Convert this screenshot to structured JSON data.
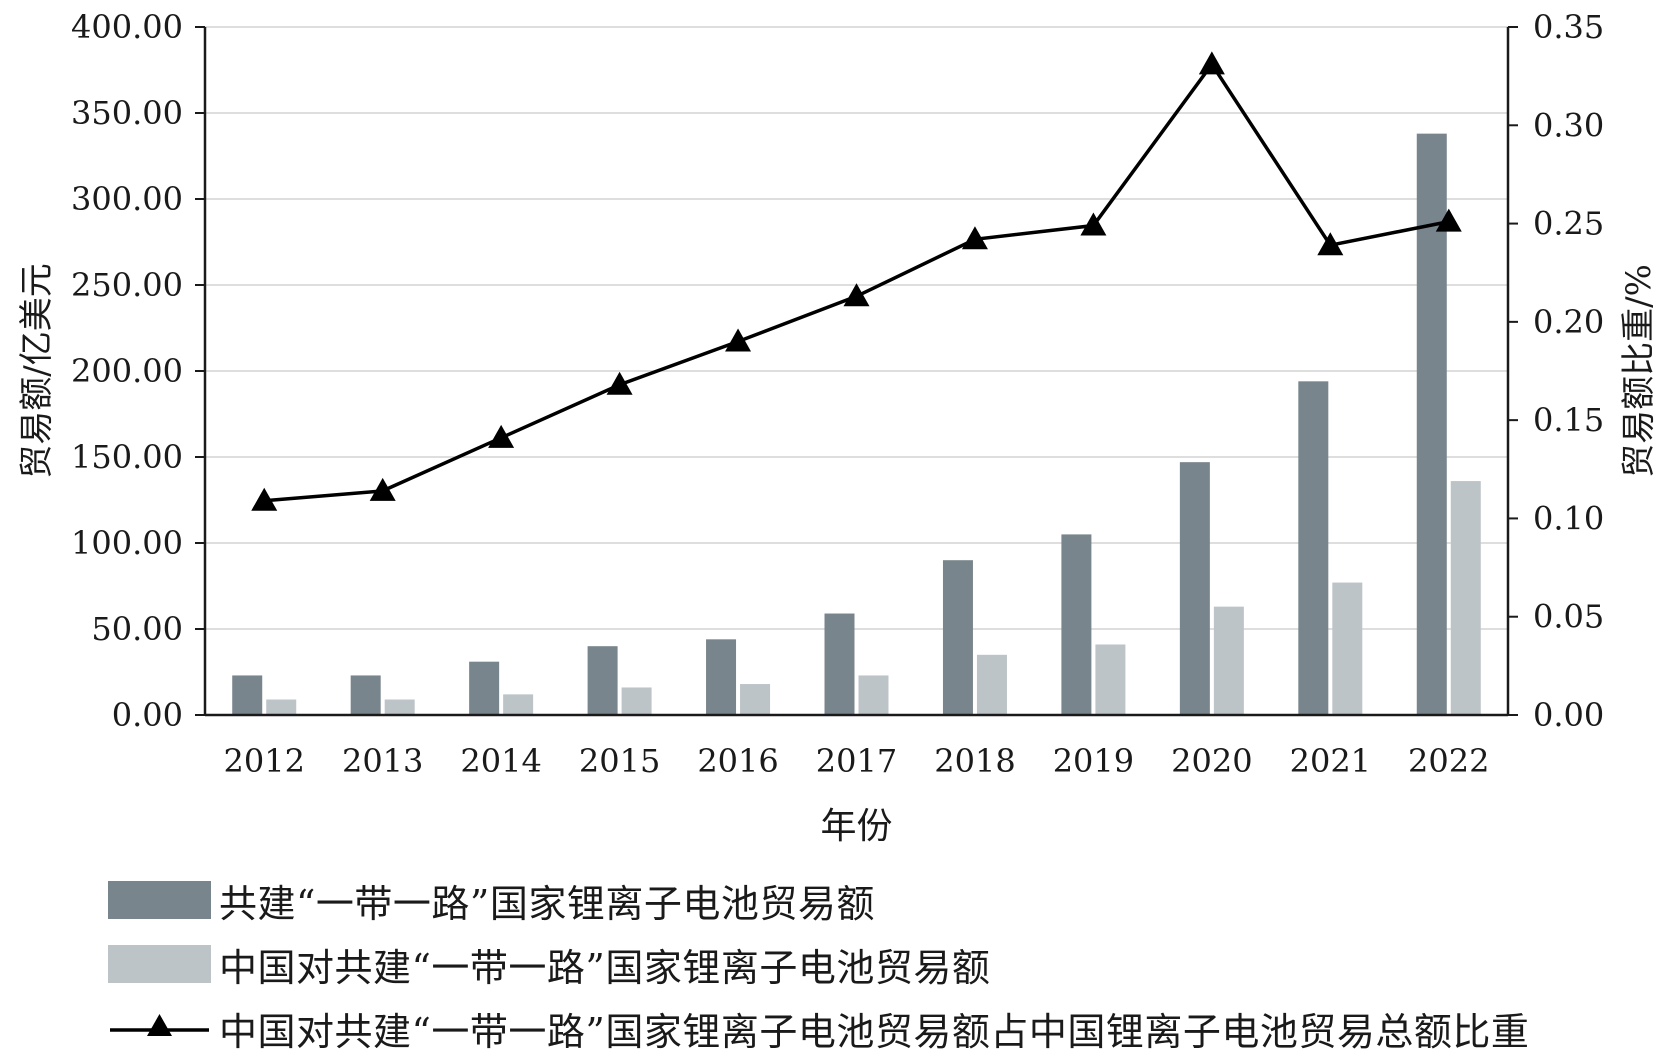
{
  "chart_data": {
    "type": "bar",
    "categories": [
      "2012",
      "2013",
      "2014",
      "2015",
      "2016",
      "2017",
      "2018",
      "2019",
      "2020",
      "2021",
      "2022"
    ],
    "xlabel": "年份",
    "ylabel_left": "贸易额/亿美元",
    "ylabel_right": "贸易额比重/%",
    "ylim_left": [
      0,
      400
    ],
    "ylim_right": [
      0,
      0.35
    ],
    "left_ticks": [
      "0.00",
      "50.00",
      "100.00",
      "150.00",
      "200.00",
      "250.00",
      "300.00",
      "350.00",
      "400.00"
    ],
    "right_ticks": [
      "0.00",
      "0.05",
      "0.10",
      "0.15",
      "0.20",
      "0.25",
      "0.30",
      "0.35"
    ],
    "grid": true,
    "legend_position": "bottom",
    "series": [
      {
        "name": "共建“一带一路”国家锂离子电池贸易额",
        "type": "bar",
        "axis": "left",
        "color": "#78858c",
        "values": [
          23,
          23,
          31,
          40,
          44,
          59,
          90,
          105,
          147,
          194,
          338
        ]
      },
      {
        "name": "中国对共建“一带一路”国家锂离子电池贸易额",
        "type": "bar",
        "axis": "left",
        "color": "#bcc4c8",
        "values": [
          9,
          9,
          12,
          16,
          18,
          23,
          35,
          41,
          63,
          77,
          136
        ]
      },
      {
        "name": "中国对共建“一带一路”国家锂离子电池贸易额占中国锂离子电池贸易总额比重",
        "type": "line",
        "axis": "right",
        "color": "#000000",
        "marker": "triangle",
        "values": [
          0.109,
          0.114,
          0.141,
          0.168,
          0.19,
          0.213,
          0.242,
          0.249,
          0.331,
          0.239,
          0.251
        ]
      }
    ]
  }
}
